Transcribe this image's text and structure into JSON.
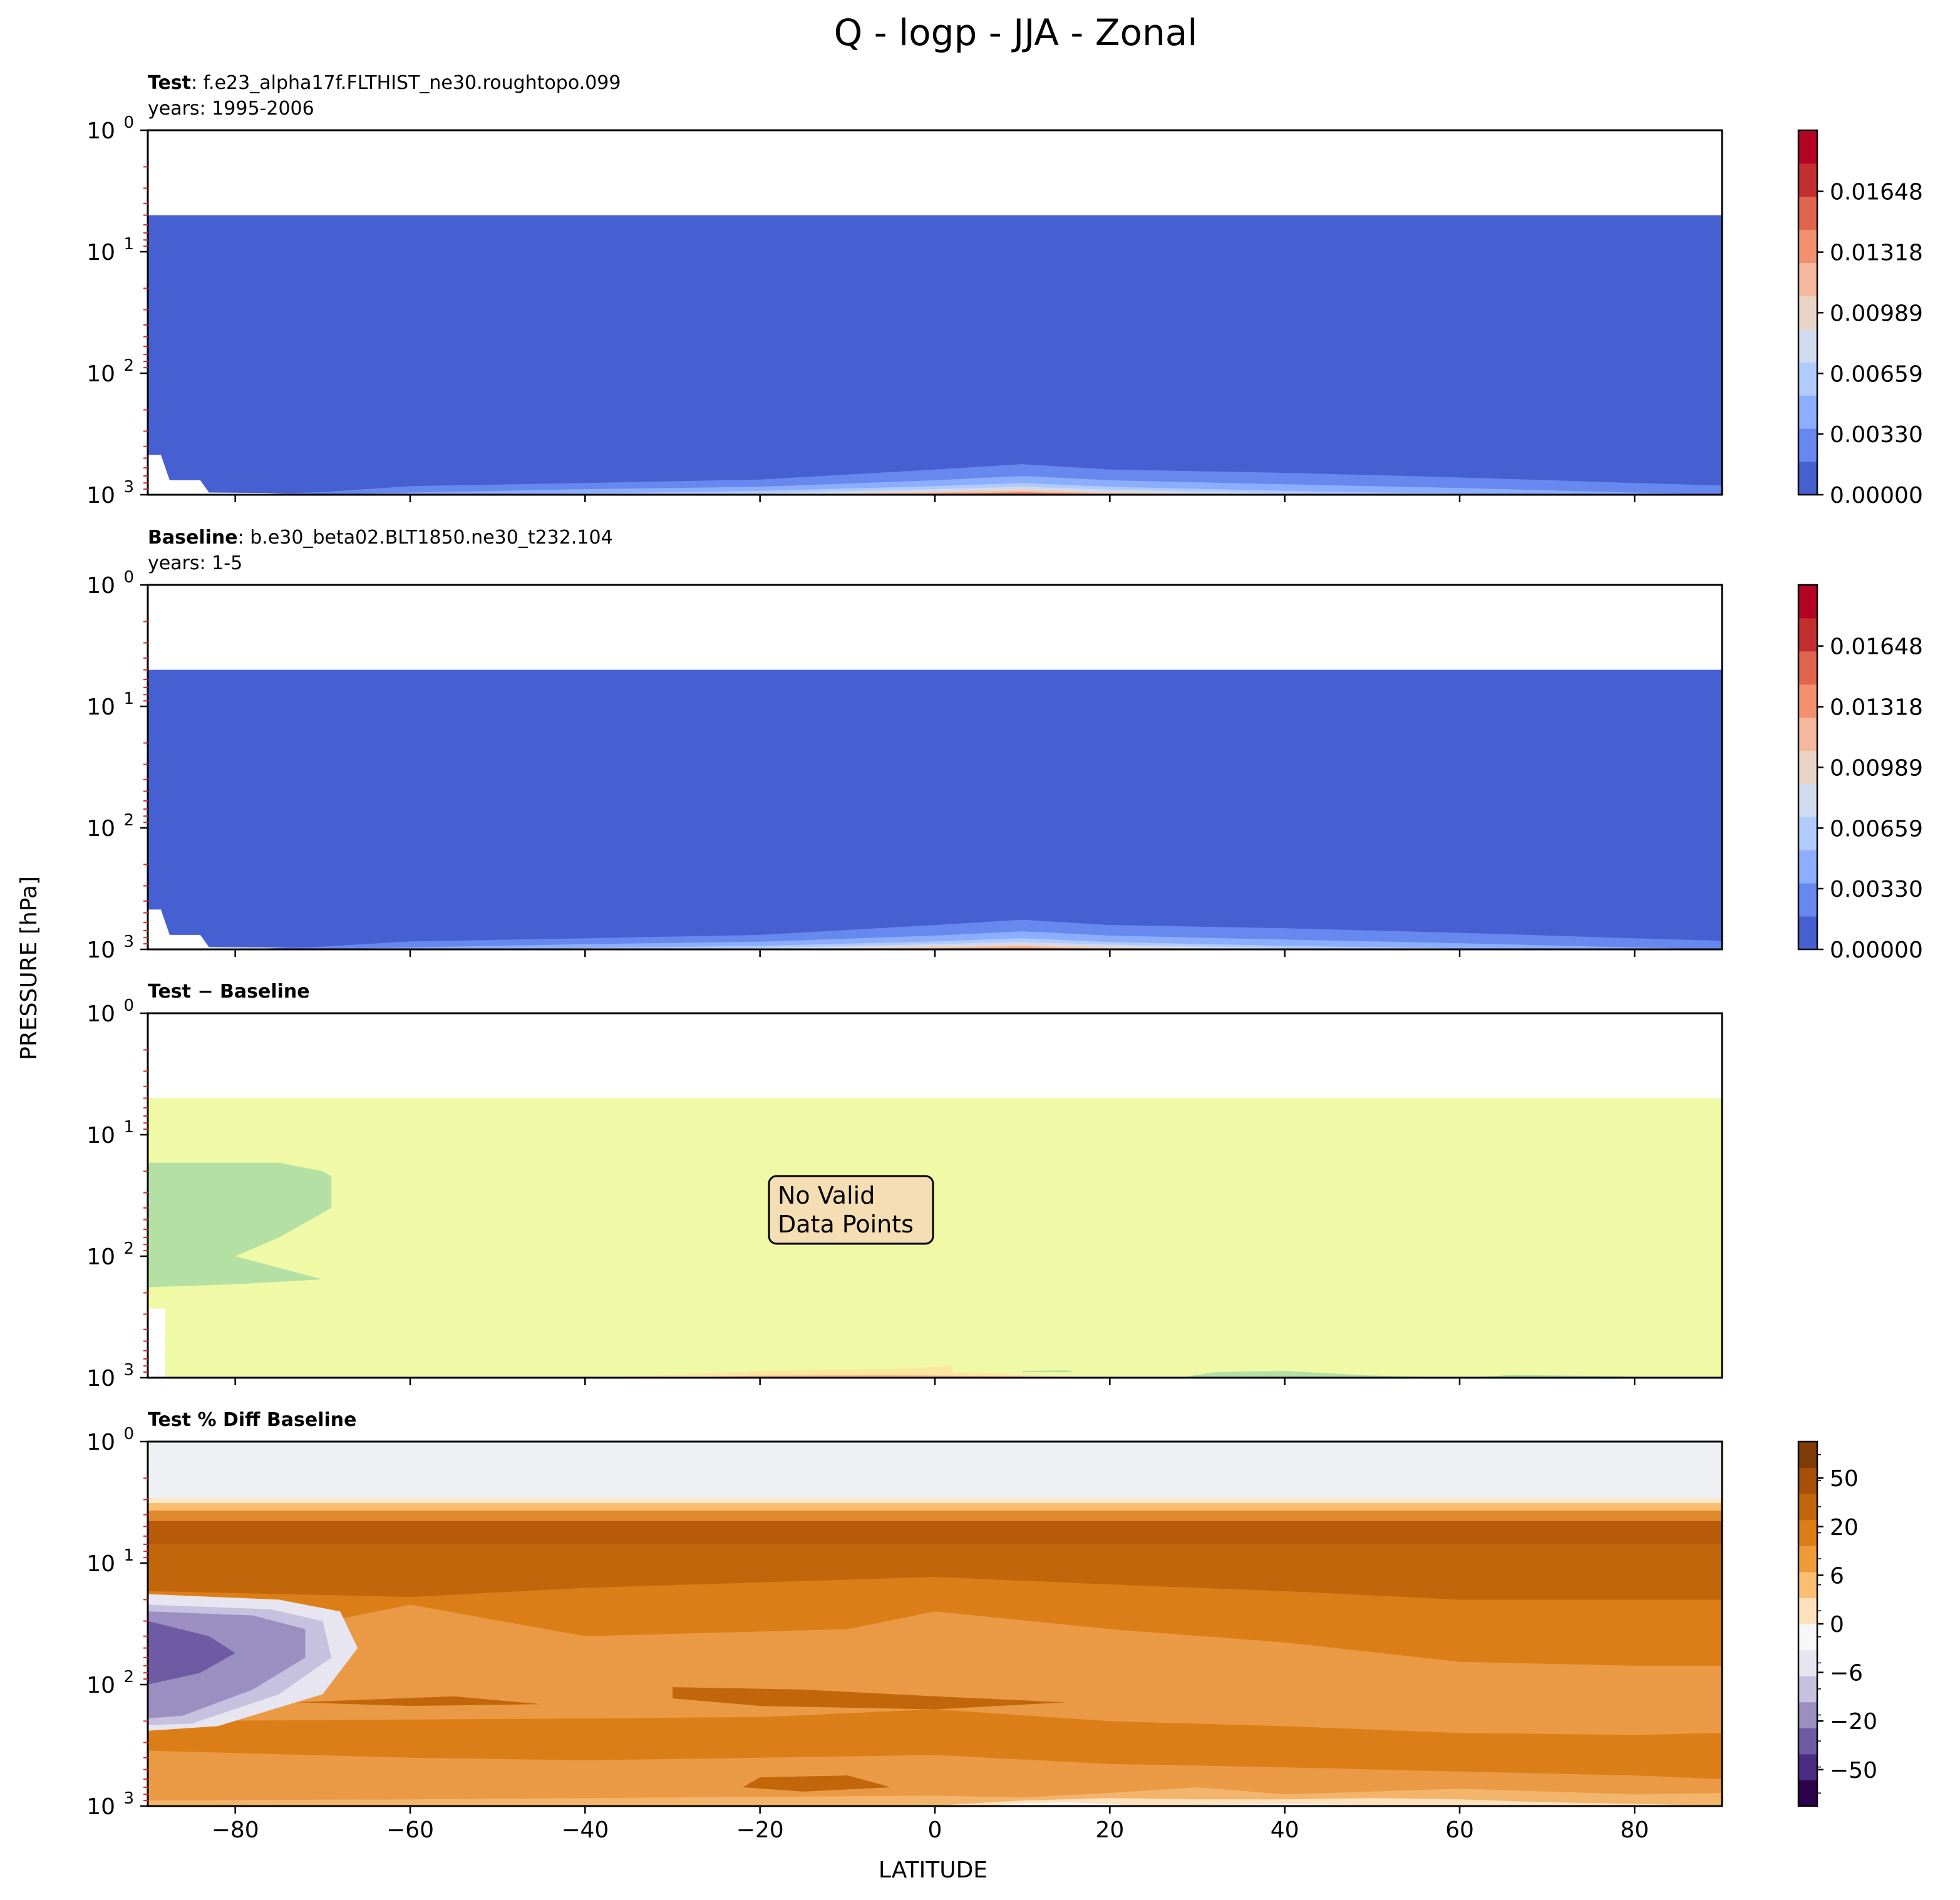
{
  "figure": {
    "title": "Q - logp - JJA - Zonal",
    "ylabel": "PRESSURE [hPa]",
    "xlabel": "LATITUDE"
  },
  "chart_data": [
    {
      "id": "test",
      "type": "heatmap",
      "title_bold": "Test",
      "title_rest": ": f.e23_alpha17f.FLTHIST_ne30.roughtopo.099",
      "subtitle": "years: 1995-2006",
      "x_range": [
        -90,
        90
      ],
      "x_ticks": [
        -80,
        -60,
        -40,
        -20,
        0,
        20,
        40,
        60,
        80
      ],
      "y_scale": "log",
      "y_range_hpa": [
        1000,
        1
      ],
      "y_ticks": [
        {
          "base": "10",
          "exp": "0"
        },
        {
          "base": "10",
          "exp": "1"
        },
        {
          "base": "10",
          "exp": "2"
        },
        {
          "base": "10",
          "exp": "3"
        }
      ],
      "data_top_hpa": 5,
      "colorbar_ticks": [
        "0.01648",
        "0.01318",
        "0.00989",
        "0.00659",
        "0.00330",
        "0.00000"
      ],
      "colorbar_range": [
        0,
        0.0198
      ],
      "colorbar_colors": [
        "#4760d1",
        "#6788ee",
        "#8caeff",
        "#b0cbfc",
        "#d1dbef",
        "#e9d4c6",
        "#f6b89c",
        "#f2906f",
        "#e0654f",
        "#c32f2f",
        "#b40426"
      ],
      "bands_lat": [
        -90,
        -80,
        -70,
        -60,
        -40,
        -20,
        0,
        10,
        20,
        40,
        60,
        80,
        90
      ],
      "bands_top_hpa": [
        [
          1000,
          1000,
          950,
          850,
          800,
          750,
          620,
          560,
          620,
          660,
          720,
          800,
          840
        ],
        [
          1000,
          1000,
          1000,
          960,
          900,
          860,
          760,
          700,
          760,
          820,
          880,
          960,
          1000
        ],
        [
          1000,
          1000,
          1000,
          1000,
          975,
          930,
          850,
          800,
          860,
          930,
          980,
          1000,
          1000
        ],
        [
          1000,
          1000,
          1000,
          1000,
          1000,
          975,
          900,
          860,
          910,
          975,
          1000,
          1000,
          1000
        ],
        [
          1000,
          1000,
          1000,
          1000,
          1000,
          1000,
          940,
          900,
          950,
          1000,
          1000,
          1000,
          1000
        ],
        [
          1000,
          1000,
          1000,
          1000,
          1000,
          1000,
          960,
          930,
          975,
          1000,
          1000,
          1000,
          1000
        ],
        [
          1000,
          1000,
          1000,
          1000,
          1000,
          1000,
          980,
          955,
          990,
          1000,
          1000,
          1000,
          1000
        ],
        [
          1000,
          1000,
          1000,
          1000,
          1000,
          1000,
          992,
          975,
          1000,
          1000,
          1000,
          1000,
          1000
        ]
      ]
    },
    {
      "id": "baseline",
      "type": "heatmap",
      "title_bold": "Baseline",
      "title_rest": ": b.e30_beta02.BLT1850.ne30_t232.104",
      "subtitle": "years: 1-5",
      "x_range": [
        -90,
        90
      ],
      "x_ticks": [
        -80,
        -60,
        -40,
        -20,
        0,
        20,
        40,
        60,
        80
      ],
      "y_scale": "log",
      "y_range_hpa": [
        1000,
        1
      ],
      "y_ticks": [
        {
          "base": "10",
          "exp": "0"
        },
        {
          "base": "10",
          "exp": "1"
        },
        {
          "base": "10",
          "exp": "2"
        },
        {
          "base": "10",
          "exp": "3"
        }
      ],
      "data_top_hpa": 5,
      "colorbar_ticks": [
        "0.01648",
        "0.01318",
        "0.00989",
        "0.00659",
        "0.00330",
        "0.00000"
      ],
      "colorbar_range": [
        0,
        0.0198
      ],
      "colorbar_colors": [
        "#4760d1",
        "#6788ee",
        "#8caeff",
        "#b0cbfc",
        "#d1dbef",
        "#e9d4c6",
        "#f6b89c",
        "#f2906f",
        "#e0654f",
        "#c32f2f",
        "#b40426"
      ],
      "bands_lat": [
        -90,
        -80,
        -70,
        -60,
        -40,
        -20,
        0,
        10,
        20,
        40,
        60,
        80,
        90
      ],
      "bands_top_hpa": [
        [
          1000,
          1000,
          950,
          860,
          810,
          760,
          630,
          570,
          630,
          670,
          730,
          810,
          850
        ],
        [
          1000,
          1000,
          1000,
          965,
          905,
          865,
          770,
          710,
          770,
          830,
          890,
          965,
          1000
        ],
        [
          1000,
          1000,
          1000,
          1000,
          978,
          935,
          860,
          810,
          870,
          935,
          985,
          1000,
          1000
        ],
        [
          1000,
          1000,
          1000,
          1000,
          1000,
          978,
          905,
          870,
          915,
          978,
          1000,
          1000,
          1000
        ],
        [
          1000,
          1000,
          1000,
          1000,
          1000,
          1000,
          945,
          910,
          955,
          1000,
          1000,
          1000,
          1000
        ],
        [
          1000,
          1000,
          1000,
          1000,
          1000,
          1000,
          965,
          940,
          978,
          1000,
          1000,
          1000,
          1000
        ],
        [
          1000,
          1000,
          1000,
          1000,
          1000,
          1000,
          983,
          962,
          992,
          1000,
          1000,
          1000,
          1000
        ],
        [
          1000,
          1000,
          1000,
          1000,
          1000,
          1000,
          994,
          980,
          1000,
          1000,
          1000,
          1000,
          1000
        ]
      ]
    },
    {
      "id": "diff",
      "type": "heatmap",
      "title": "Test − Baseline",
      "annotation": [
        "No Valid",
        "Data Points"
      ],
      "x_range": [
        -90,
        90
      ],
      "y_scale": "log",
      "y_range_hpa": [
        1000,
        1
      ],
      "y_ticks": [
        {
          "base": "10",
          "exp": "0"
        },
        {
          "base": "10",
          "exp": "1"
        },
        {
          "base": "10",
          "exp": "2"
        },
        {
          "base": "10",
          "exp": "3"
        }
      ],
      "data_top_hpa": 5,
      "background_color": "#eff9a6",
      "region_colors": [
        "#b4e0a4",
        "#fde6a0",
        "#fdc07a",
        "#f57f46",
        "#3db7a8"
      ]
    },
    {
      "id": "pctdiff",
      "type": "heatmap",
      "title": "Test % Diff Baseline",
      "x_range": [
        -90,
        90
      ],
      "x_ticks": [
        -80,
        -60,
        -40,
        -20,
        0,
        20,
        40,
        60,
        80
      ],
      "y_scale": "log",
      "y_range_hpa": [
        1000,
        1
      ],
      "y_ticks": [
        {
          "base": "10",
          "exp": "0"
        },
        {
          "base": "10",
          "exp": "1"
        },
        {
          "base": "10",
          "exp": "2"
        },
        {
          "base": "10",
          "exp": "3"
        }
      ],
      "colorbar_ticks": [
        "50",
        "20",
        "6",
        "0",
        "−6",
        "−20",
        "−50"
      ],
      "colorbar_colors": [
        "#2d004b",
        "#4a2d82",
        "#6f5ba3",
        "#9a8fc0",
        "#c5c1de",
        "#e6e5f0",
        "#f7f7f7",
        "#fde2bd",
        "#fbbf72",
        "#f09a3a",
        "#dc7e17",
        "#c1660b",
        "#a84f07",
        "#7f3b08"
      ]
    }
  ]
}
